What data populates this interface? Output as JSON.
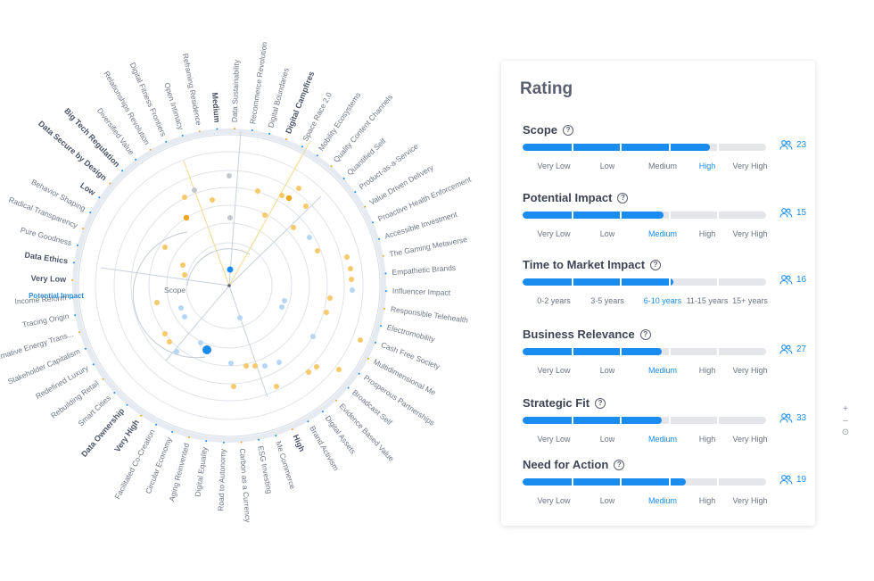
{
  "radar": {
    "center_label": "Scope",
    "ring_labels": [
      {
        "text": "Medium",
        "marker": "▲"
      },
      {
        "text": "Low",
        "marker": "▲"
      },
      {
        "text": "Very Low",
        "marker": "▲"
      },
      {
        "text": "Very High",
        "marker": "▲"
      },
      {
        "text": "High",
        "marker": "▲"
      }
    ],
    "selected_sub_label": "Potential Impact",
    "colors": {
      "blue": "#1a8cf0",
      "light_blue": "#b6d6f5",
      "orange": "#f7c96a",
      "dark_orange": "#f0a31f",
      "grey": "#c4c8ce"
    },
    "categories": [
      "Data Sustainability",
      "Recommerce Revolution",
      "Digital Boundaries",
      "Digital Campfires",
      "Space Race 2.0",
      "Mobility Ecosystems",
      "Quality Content Channels",
      "Quantified Self",
      "Product-as-a-Service",
      "Value Driven Delivery",
      "Proactive Health Enforcement",
      "Accessible Investment",
      "The Gaming Metaverse",
      "Empathetic Brands",
      "Influencer Impact",
      "Responsible Telehealth",
      "Electromobility",
      "Cash Free Society",
      "Multidimensional Me",
      "Prosperous Partnerships",
      "Broadcast Self",
      "Evidence Based Value",
      "Digital Assets",
      "Brand Activism",
      "High",
      "Me Commerce",
      "ESG Investing",
      "Carbon as a Currency",
      "Road to Autonomy",
      "Digital Equality",
      "Aging Reinvented",
      "Circular Economy",
      "Facilitated Co-Creation",
      "Very High",
      "Data Ownership",
      "Smart Cities",
      "Rebuilding Retail",
      "Redefined Luxury",
      "Stakeholder Capitalism",
      "Alternative Energy Trans...",
      "Tracing Origin",
      "Income Reform",
      "Very Low",
      "Data Ethics",
      "Pure Goodness",
      "Radical Transparency",
      "Behavior Shaping",
      "Low",
      "Data Secure by Design",
      "Big Tech Regulation",
      "Diversified Value",
      "Relationships Revolution",
      "Digital Fitness Frontiers",
      "Open Intimacy",
      "Reframing Residence",
      "Medium"
    ]
  },
  "rating": {
    "title": "Rating",
    "criteria": [
      {
        "name": "Scope",
        "fill": 0.77,
        "count": "23",
        "active": 3,
        "scale": [
          "Very Low",
          "Low",
          "Medium",
          "High",
          "Very High"
        ]
      },
      {
        "name": "Potential Impact",
        "fill": 0.58,
        "count": "15",
        "active": 2,
        "scale": [
          "Very Low",
          "Low",
          "Medium",
          "High",
          "Very High"
        ]
      },
      {
        "name": "Time to Market Impact",
        "fill": 0.62,
        "count": "16",
        "active": 2,
        "scale": [
          "0-2 years",
          "3-5 years",
          "6-10 years",
          "11-15 years",
          "15+ years"
        ]
      },
      {
        "name": "Business Relevance",
        "fill": 0.57,
        "count": "27",
        "active": 2,
        "scale": [
          "Very Low",
          "Low",
          "Medium",
          "High",
          "Very High"
        ]
      },
      {
        "name": "Strategic Fit",
        "fill": 0.57,
        "count": "33",
        "active": 2,
        "scale": [
          "Very Low",
          "Low",
          "Medium",
          "High",
          "Very High"
        ]
      },
      {
        "name": "Need for Action",
        "fill": 0.67,
        "count": "19",
        "active": 2,
        "scale": [
          "Very Low",
          "Low",
          "Medium",
          "High",
          "Very High"
        ]
      }
    ]
  },
  "zoom": {
    "plus": "+",
    "minus": "–",
    "reset": "⊙"
  }
}
